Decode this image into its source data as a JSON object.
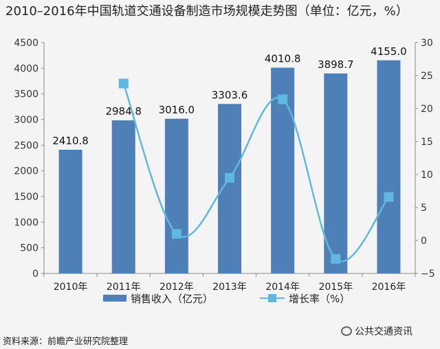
{
  "header": {
    "title": "2010–2016年中国轨道交通设备制造市场规模走势图（单位：亿元，%）"
  },
  "source_text": "资料来源：前瞻产业研究院整理",
  "watermark": {
    "text": "公共交通资讯",
    "icon": "wechat-icon"
  },
  "colors": {
    "bar": "#4f7fb7",
    "line": "#5fb8e0",
    "axis": "#888888"
  },
  "chart_data": {
    "type": "bar",
    "categories": [
      "2010年",
      "2011年",
      "2012年",
      "2013年",
      "2014年",
      "2015年",
      "2016年"
    ],
    "series": [
      {
        "name": "销售收入（亿元）",
        "type": "bar",
        "axis": "left",
        "values": [
          2410.8,
          2984.8,
          3016.0,
          3303.6,
          4010.8,
          3898.7,
          4155.0
        ],
        "labels": [
          "2410.8",
          "2984.8",
          "3016.0",
          "3303.6",
          "4010.8",
          "3898.7",
          "4155.0"
        ]
      },
      {
        "name": "增长率（%）",
        "type": "line",
        "axis": "right",
        "values": [
          null,
          23.8,
          1.0,
          9.5,
          21.4,
          -2.8,
          6.6
        ]
      }
    ],
    "ylim_left": [
      0,
      4500
    ],
    "yticks_left": [
      "0",
      "500",
      "1000",
      "1500",
      "2000",
      "2500",
      "3000",
      "3500",
      "4000",
      "4500"
    ],
    "ylim_right": [
      -5,
      30
    ],
    "yticks_right": [
      "−5",
      "0",
      "5",
      "10",
      "15",
      "20",
      "25",
      "30"
    ],
    "legend": "bottom",
    "grid": false
  }
}
